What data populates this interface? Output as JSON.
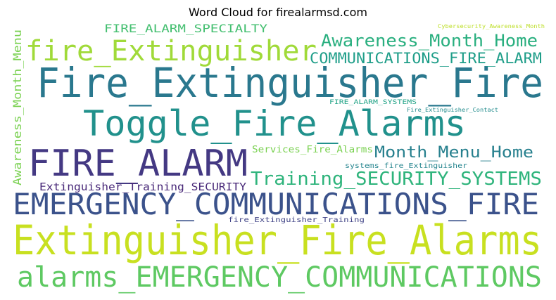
{
  "title": "Word Cloud for firealarmsd.com",
  "chart_data": {
    "type": "wordcloud",
    "title": "Word Cloud for firealarmsd.com",
    "words": [
      {
        "text": "Extinguisher_Fire_Alarms",
        "color": "#c8e020"
      },
      {
        "text": "Fire_Extinguisher_Fire",
        "color": "#2a788e"
      },
      {
        "text": "alarms_EMERGENCY_COMMUNICATIONS",
        "color": "#5ec962"
      },
      {
        "text": "Toggle_Fire_Alarms",
        "color": "#21918c"
      },
      {
        "text": "EMERGENCY_COMMUNICATIONS_FIRE",
        "color": "#3b528b"
      },
      {
        "text": "FIRE_ALARM",
        "color": "#443983"
      },
      {
        "text": "fire_Extinguisher",
        "color": "#a0da39"
      },
      {
        "text": "Training_SECURITY_SYSTEMS",
        "color": "#2fb47c"
      },
      {
        "text": "Awareness_Month_Home",
        "color": "#29af7f"
      },
      {
        "text": "COMMUNICATIONS_FIRE_ALARM",
        "color": "#1f9e89"
      },
      {
        "text": "Month_Menu_Home",
        "color": "#27808e"
      },
      {
        "text": "Extinguisher_Training_SECURITY",
        "color": "#482878"
      },
      {
        "text": "FIRE_ALARM_SPECIALTY",
        "color": "#44bf70"
      },
      {
        "text": "Awareness_Month_Menu",
        "color": "#7ad151"
      },
      {
        "text": "Services_Fire_Alarms",
        "color": "#7ad151"
      },
      {
        "text": "systems_fire_Extinguisher",
        "color": "#25858e"
      },
      {
        "text": "fire_Extinguisher_Training",
        "color": "#414487"
      },
      {
        "text": "FIRE_ALARM_SYSTEMS",
        "color": "#20a386"
      },
      {
        "text": "Fire_Extinguisher_Contact",
        "color": "#228c8d"
      },
      {
        "text": "Cybersecurity_Awareness_Month",
        "color": "#bddf26"
      }
    ]
  }
}
